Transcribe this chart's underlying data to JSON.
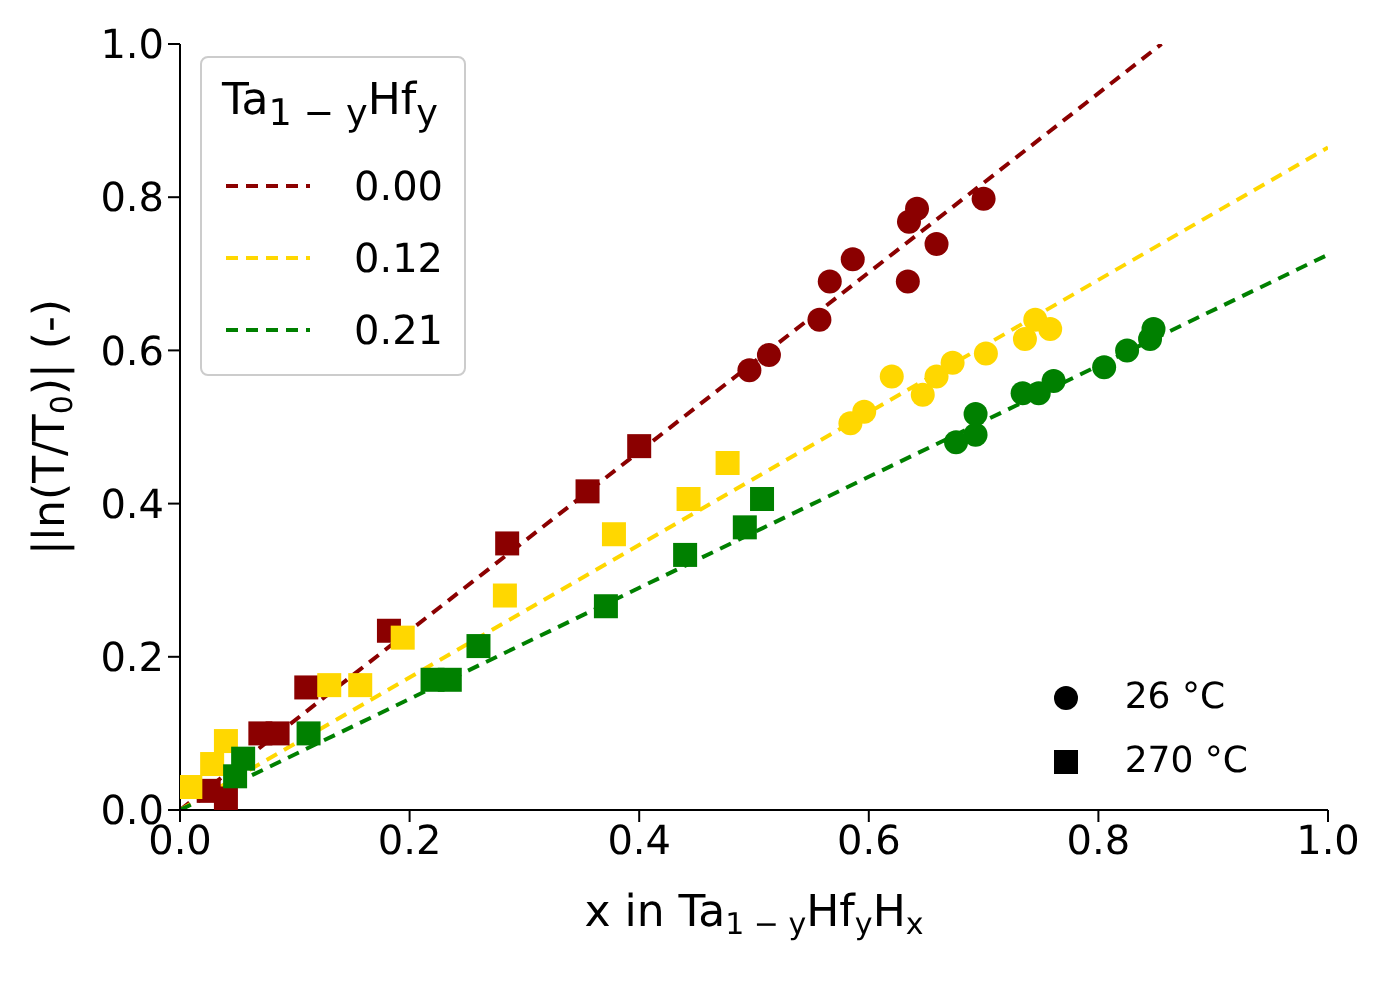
{
  "chart_data": {
    "type": "scatter",
    "xlabel": "x in Ta$_{1 − y}$Hf$_{y}$H$_{x}$",
    "ylabel": "|ln(T/T$_{0}$)| (-)",
    "legend_title": "Ta$_{1 − y}$Hf$_{y}$",
    "legend": "top left",
    "grid": false,
    "xlim": [
      0,
      1
    ],
    "ylim": [
      0,
      1
    ],
    "xticks": [
      {
        "value": 0,
        "label": "0.0"
      },
      {
        "value": 0.2,
        "label": "0.2"
      },
      {
        "value": 0.4,
        "label": "0.4"
      },
      {
        "value": 0.6,
        "label": "0.6"
      },
      {
        "value": 0.8,
        "label": "0.8"
      },
      {
        "value": 1,
        "label": "1.0"
      }
    ],
    "yticks": [
      {
        "value": 0,
        "label": "0.0"
      },
      {
        "value": 0.2,
        "label": "0.2"
      },
      {
        "value": 0.4,
        "label": "0.4"
      },
      {
        "value": 0.6,
        "label": "0.6"
      },
      {
        "value": 0.8,
        "label": "0.8"
      },
      {
        "value": 1,
        "label": "1.0"
      }
    ],
    "annotations": [
      "26 °C",
      "270 °C"
    ],
    "series": [
      {
        "name": "0.00",
        "type": "line",
        "line_style": "dashed",
        "marker": "none",
        "color": "#8b0000",
        "x": [
          0,
          0.855
        ],
        "values": [
          0,
          1.0
        ]
      },
      {
        "name": "0.12",
        "type": "line",
        "line_style": "dashed",
        "marker": "none",
        "color": "#ffd700",
        "x": [
          0,
          1
        ],
        "values": [
          0,
          0.865
        ]
      },
      {
        "name": "0.21",
        "type": "line",
        "line_style": "dashed",
        "marker": "none",
        "color": "#008000",
        "x": [
          0,
          1
        ],
        "values": [
          0,
          0.725
        ]
      },
      {
        "marker": "circle",
        "color": "#8b0000",
        "x": [
          0.496,
          0.513,
          0.557,
          0.566,
          0.586,
          0.634,
          0.635,
          0.642,
          0.659,
          0.7
        ],
        "values": [
          0.574,
          0.594,
          0.64,
          0.69,
          0.719,
          0.69,
          0.768,
          0.785,
          0.739,
          0.798
        ]
      },
      {
        "marker": "circle",
        "color": "#ffd700",
        "x": [
          0.584,
          0.596,
          0.62,
          0.647,
          0.659,
          0.673,
          0.702,
          0.736,
          0.745,
          0.758
        ],
        "values": [
          0.505,
          0.52,
          0.566,
          0.542,
          0.566,
          0.584,
          0.596,
          0.615,
          0.64,
          0.628
        ]
      },
      {
        "marker": "circle",
        "color": "#008000",
        "x": [
          0.676,
          0.693,
          0.693,
          0.734,
          0.748,
          0.761,
          0.805,
          0.825,
          0.845,
          0.848
        ],
        "values": [
          0.48,
          0.517,
          0.49,
          0.544,
          0.544,
          0.56,
          0.578,
          0.6,
          0.615,
          0.628
        ]
      },
      {
        "marker": "square",
        "color": "#8b0000",
        "x": [
          0.025,
          0.04,
          0.07,
          0.085,
          0.11,
          0.182,
          0.285,
          0.355,
          0.4
        ],
        "values": [
          0.025,
          0.015,
          0.1,
          0.1,
          0.16,
          0.234,
          0.348,
          0.416,
          0.475
        ]
      },
      {
        "marker": "square",
        "color": "#ffd700",
        "x": [
          0.009,
          0.028,
          0.04,
          0.13,
          0.157,
          0.194,
          0.283,
          0.378,
          0.443,
          0.477
        ],
        "values": [
          0.03,
          0.06,
          0.09,
          0.163,
          0.163,
          0.225,
          0.28,
          0.36,
          0.406,
          0.453
        ]
      },
      {
        "marker": "square",
        "color": "#008000",
        "x": [
          0.048,
          0.055,
          0.112,
          0.22,
          0.235,
          0.26,
          0.371,
          0.44,
          0.492,
          0.507
        ],
        "values": [
          0.044,
          0.067,
          0.1,
          0.17,
          0.17,
          0.214,
          0.266,
          0.333,
          0.369,
          0.406
        ]
      }
    ]
  }
}
